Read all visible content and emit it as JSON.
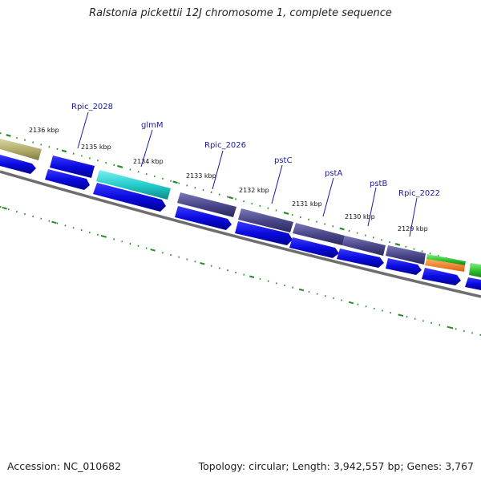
{
  "title": "Ralstonia pickettii 12J chromosome 1, complete sequence",
  "footer": {
    "accession": "Accession: NC_010682",
    "stats": "Topology: circular; Length: 3,942,557 bp; Genes: 3,767"
  },
  "kbp_labels": [
    "2136 kbp",
    "2135 kbp",
    "2134 kbp",
    "2133 kbp",
    "2132 kbp",
    "2131 kbp",
    "2130 kbp",
    "2129 kbp"
  ],
  "gene_labels": [
    "Rpic_2028",
    "glmM",
    "Rpic_2026",
    "pstC",
    "pstA",
    "pstB",
    "Rpic_2022"
  ],
  "colors": {
    "cds": "#1010e8",
    "khaki_gene": "#b5b070",
    "cyan_gene": "#20c8c8",
    "slate_gene": "#4a4890",
    "green_gene": "#30c030",
    "orange_gene": "#f08020",
    "tick": "#2a8a2a",
    "backbone": "#777777",
    "label": "#1a1aa8"
  }
}
